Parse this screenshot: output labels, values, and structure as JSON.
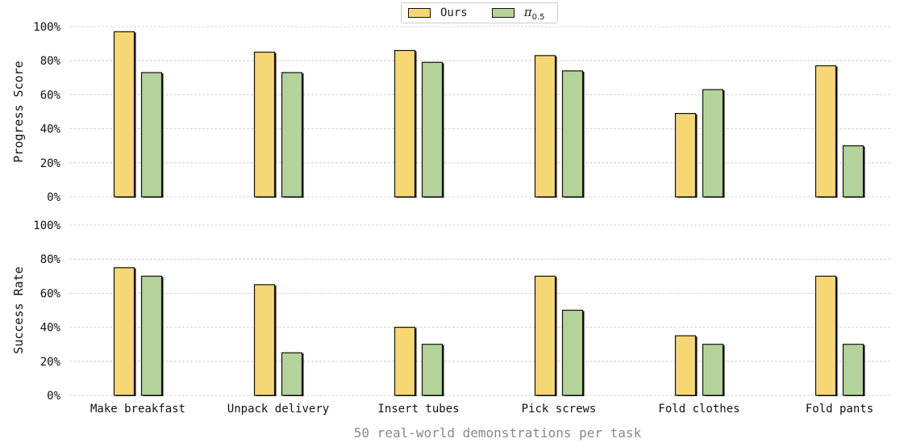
{
  "chart_data": [
    {
      "type": "bar",
      "ylabel": "Progress Score",
      "ylim": [
        0,
        100
      ],
      "ytick_labels": [
        "0%",
        "20%",
        "40%",
        "60%",
        "80%",
        "100%"
      ],
      "categories": [
        "Make breakfast",
        "Unpack delivery",
        "Insert tubes",
        "Pick screws",
        "Fold clothes",
        "Fold pants"
      ],
      "series": [
        {
          "name": "Ours",
          "values": [
            97,
            85,
            86,
            83,
            49,
            77
          ]
        },
        {
          "name": "π0.5",
          "values": [
            73,
            73,
            79,
            74,
            63,
            30
          ]
        }
      ],
      "grid": true
    },
    {
      "type": "bar",
      "ylabel": "Success Rate",
      "ylim": [
        0,
        100
      ],
      "ytick_labels": [
        "0%",
        "20%",
        "40%",
        "60%",
        "80%",
        "100%"
      ],
      "categories": [
        "Make breakfast",
        "Unpack delivery",
        "Insert tubes",
        "Pick screws",
        "Fold clothes",
        "Fold pants"
      ],
      "series": [
        {
          "name": "Ours",
          "values": [
            75,
            65,
            40,
            70,
            35,
            70
          ]
        },
        {
          "name": "π0.5",
          "values": [
            70,
            25,
            30,
            50,
            30,
            30
          ]
        }
      ],
      "grid": true
    }
  ],
  "legend": {
    "placement": "top-center",
    "ours_label": "Ours",
    "pi_symbol": "π",
    "pi_subscript": "0.5"
  },
  "x_title": "50 real-world demonstrations per task",
  "colors": {
    "ours": "#f7d774",
    "pi05": "#b4d39a",
    "edge": "#111111",
    "grid": "#c8c8c8"
  }
}
